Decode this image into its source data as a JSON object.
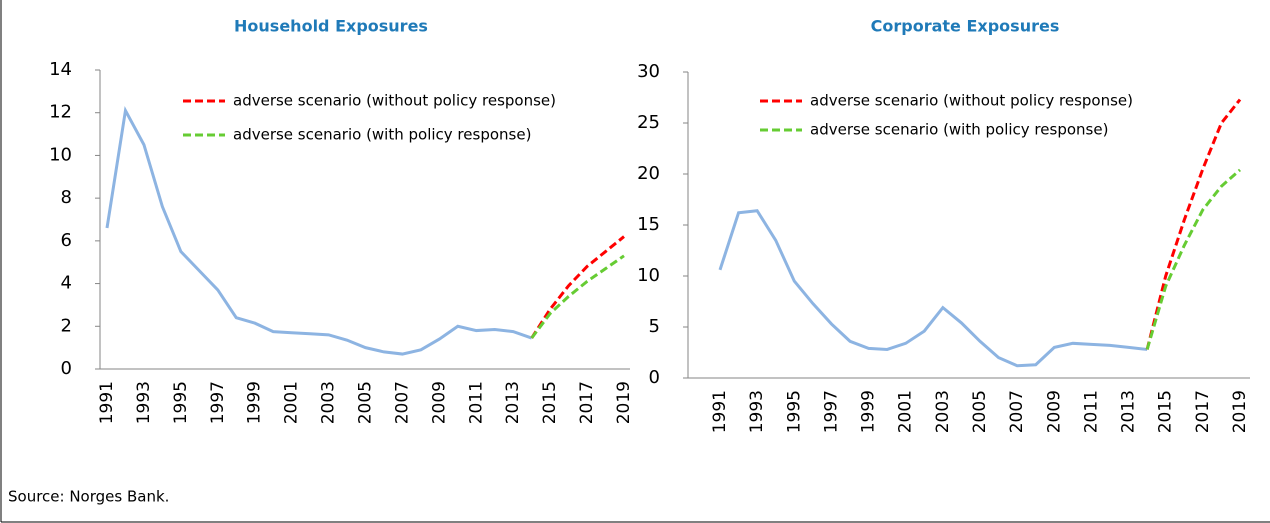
{
  "chart_data": [
    {
      "type": "line",
      "title": "Household Exposures",
      "categories": [
        "1991",
        null,
        "1993",
        null,
        "1995",
        null,
        "1997",
        null,
        "1999",
        null,
        "2001",
        null,
        "2003",
        null,
        "2005",
        null,
        "2007",
        null,
        "2009",
        null,
        "2011",
        null,
        "2013",
        null,
        "2015",
        null,
        "2017",
        null,
        "2019"
      ],
      "ylim": [
        0,
        14
      ],
      "yticks": [
        0,
        2,
        4,
        6,
        8,
        10,
        12,
        14
      ],
      "series": [
        {
          "color": "#8db4e2",
          "dash": false,
          "values": [
            6.6,
            12.1,
            10.5,
            7.6,
            5.5,
            4.6,
            3.7,
            2.4,
            2.15,
            1.75,
            1.7,
            1.65,
            1.6,
            1.35,
            1.0,
            0.8,
            0.7,
            0.9,
            1.4,
            2.0,
            1.8,
            1.85,
            1.75,
            1.45,
            null,
            null,
            null,
            null,
            null
          ]
        },
        {
          "name": "adverse scenario (without policy response)",
          "color": "#ff0000",
          "dash": true,
          "values": [
            null,
            null,
            null,
            null,
            null,
            null,
            null,
            null,
            null,
            null,
            null,
            null,
            null,
            null,
            null,
            null,
            null,
            null,
            null,
            null,
            null,
            null,
            null,
            1.45,
            2.8,
            3.9,
            4.8,
            5.5,
            6.2
          ]
        },
        {
          "name": "adverse scenario (with policy response)",
          "color": "#66cc33",
          "dash": true,
          "values": [
            null,
            null,
            null,
            null,
            null,
            null,
            null,
            null,
            null,
            null,
            null,
            null,
            null,
            null,
            null,
            null,
            null,
            null,
            null,
            null,
            null,
            null,
            null,
            1.45,
            2.6,
            3.4,
            4.1,
            4.7,
            5.3
          ]
        }
      ]
    },
    {
      "type": "line",
      "title": "Corporate Exposures",
      "categories": [
        "1991",
        null,
        "1993",
        null,
        "1995",
        null,
        "1997",
        null,
        "1999",
        null,
        "2001",
        null,
        "2003",
        null,
        "2005",
        null,
        "2007",
        null,
        "2009",
        null,
        "2011",
        null,
        "2013",
        null,
        "2015",
        null,
        "2017",
        null,
        "2019"
      ],
      "ylim": [
        0,
        30
      ],
      "yticks": [
        0,
        5,
        10,
        15,
        20,
        25,
        30
      ],
      "series": [
        {
          "color": "#8db4e2",
          "dash": false,
          "values": [
            10.6,
            16.2,
            16.4,
            13.5,
            9.5,
            7.3,
            5.3,
            3.6,
            2.9,
            2.8,
            3.4,
            4.6,
            6.9,
            5.4,
            3.6,
            2.0,
            1.2,
            1.3,
            3.0,
            3.4,
            3.3,
            3.2,
            3.0,
            2.8,
            null,
            null,
            null,
            null,
            null
          ]
        },
        {
          "name": "adverse scenario (without policy response)",
          "color": "#ff0000",
          "dash": true,
          "values": [
            null,
            null,
            null,
            null,
            null,
            null,
            null,
            null,
            null,
            null,
            null,
            null,
            null,
            null,
            null,
            null,
            null,
            null,
            null,
            null,
            null,
            null,
            null,
            2.8,
            10.0,
            15.5,
            20.5,
            25.0,
            27.3
          ]
        },
        {
          "name": "adverse scenario (with policy response)",
          "color": "#66cc33",
          "dash": true,
          "values": [
            null,
            null,
            null,
            null,
            null,
            null,
            null,
            null,
            null,
            null,
            null,
            null,
            null,
            null,
            null,
            null,
            null,
            null,
            null,
            null,
            null,
            null,
            null,
            2.8,
            9.0,
            13.0,
            16.5,
            18.8,
            20.4
          ]
        }
      ]
    }
  ],
  "source": "Source: Norges Bank."
}
